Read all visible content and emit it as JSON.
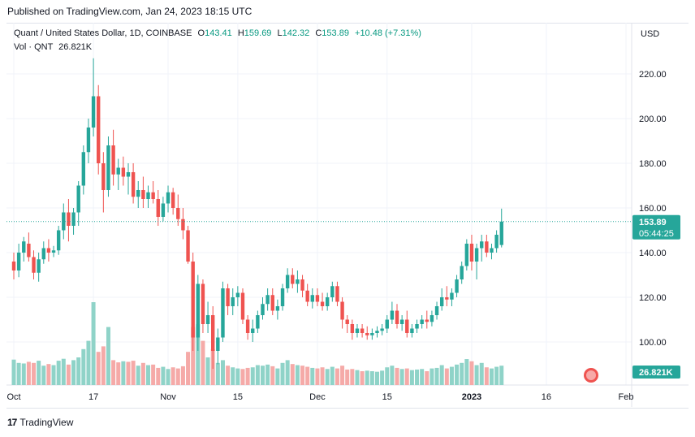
{
  "header": {
    "published": "Published on TradingView.com, Jan 24, 2023 18:15 UTC"
  },
  "legend": {
    "symbol": "Quant / United States Dollar, 1D, COINBASE",
    "o_label": "O",
    "o": "143.41",
    "h_label": "H",
    "h": "159.69",
    "l_label": "L",
    "l": "142.32",
    "c_label": "C",
    "c": "153.89",
    "change": "+10.48 (+7.31%)",
    "vol_label": "Vol · QNT",
    "vol": "26.821K"
  },
  "price_axis": {
    "currency": "USD",
    "ticks": [
      "220.00",
      "200.00",
      "180.00",
      "160.00",
      "140.00",
      "120.00",
      "100.00"
    ],
    "last_price": "153.89",
    "countdown": "05:44:25",
    "volume_badge": "26.821K"
  },
  "time_axis": {
    "labels": [
      "Oct",
      "17",
      "Nov",
      "15",
      "Dec",
      "15",
      "2023",
      "16",
      "Feb"
    ]
  },
  "footer": {
    "brand": "TradingView",
    "logo": "17"
  },
  "colors": {
    "up": "#26a69a",
    "down": "#ef5350",
    "up_vol": "#8fd3c8",
    "down_vol": "#f5aaa8",
    "badge": "#26a69a"
  },
  "chart_data": {
    "type": "candlestick",
    "title": "Quant / United States Dollar, 1D, COINBASE",
    "ylabel": "USD",
    "ylim": [
      86,
      230
    ],
    "x_tick_labels": [
      "Oct",
      "17",
      "Nov",
      "15",
      "Dec",
      "15",
      "2023",
      "16",
      "Feb"
    ],
    "x_tick_days": [
      0,
      16,
      31,
      45,
      61,
      75,
      92,
      107,
      123
    ],
    "start_label": "Oct",
    "candles": [
      [
        0,
        136,
        140,
        128,
        132
      ],
      [
        1,
        132,
        144,
        129,
        140
      ],
      [
        2,
        140,
        147,
        136,
        145
      ],
      [
        3,
        144,
        149,
        136,
        138
      ],
      [
        4,
        138,
        141,
        128,
        131
      ],
      [
        5,
        131,
        140,
        127,
        137
      ],
      [
        6,
        137,
        145,
        135,
        142
      ],
      [
        7,
        142,
        146,
        136,
        140
      ],
      [
        8,
        140,
        143,
        138,
        141
      ],
      [
        9,
        141,
        152,
        139,
        150
      ],
      [
        10,
        150,
        162,
        146,
        158
      ],
      [
        11,
        158,
        164,
        145,
        152
      ],
      [
        12,
        152,
        160,
        148,
        158
      ],
      [
        13,
        158,
        172,
        152,
        170
      ],
      [
        14,
        170,
        188,
        166,
        185
      ],
      [
        15,
        185,
        200,
        180,
        196
      ],
      [
        16,
        196,
        227,
        192,
        210
      ],
      [
        17,
        210,
        215,
        175,
        180
      ],
      [
        18,
        180,
        185,
        158,
        168
      ],
      [
        19,
        168,
        192,
        165,
        188
      ],
      [
        20,
        188,
        195,
        170,
        175
      ],
      [
        21,
        175,
        182,
        168,
        178
      ],
      [
        22,
        178,
        183,
        170,
        174
      ],
      [
        23,
        174,
        180,
        166,
        176
      ],
      [
        24,
        176,
        180,
        162,
        165
      ],
      [
        25,
        165,
        172,
        160,
        168
      ],
      [
        26,
        168,
        174,
        160,
        164
      ],
      [
        27,
        164,
        170,
        160,
        167
      ],
      [
        28,
        167,
        172,
        162,
        164
      ],
      [
        29,
        164,
        168,
        152,
        156
      ],
      [
        30,
        156,
        165,
        154,
        162
      ],
      [
        31,
        162,
        170,
        158,
        167
      ],
      [
        32,
        167,
        169,
        157,
        160
      ],
      [
        33,
        160,
        166,
        152,
        155
      ],
      [
        34,
        155,
        160,
        146,
        150
      ],
      [
        35,
        150,
        152,
        135,
        136
      ],
      [
        36,
        136,
        140,
        96,
        102
      ],
      [
        37,
        102,
        130,
        96,
        126
      ],
      [
        38,
        126,
        128,
        104,
        108
      ],
      [
        39,
        108,
        118,
        104,
        112
      ],
      [
        40,
        112,
        116,
        88,
        96
      ],
      [
        41,
        96,
        106,
        90,
        102
      ],
      [
        42,
        102,
        127,
        100,
        124
      ],
      [
        43,
        124,
        126,
        112,
        116
      ],
      [
        44,
        116,
        124,
        112,
        120
      ],
      [
        45,
        120,
        125,
        116,
        122
      ],
      [
        46,
        122,
        124,
        108,
        110
      ],
      [
        47,
        110,
        112,
        101,
        104
      ],
      [
        48,
        104,
        110,
        100,
        106
      ],
      [
        49,
        106,
        114,
        104,
        112
      ],
      [
        50,
        112,
        120,
        110,
        117
      ],
      [
        51,
        117,
        124,
        114,
        121
      ],
      [
        52,
        121,
        124,
        112,
        114
      ],
      [
        53,
        114,
        119,
        110,
        116
      ],
      [
        54,
        116,
        126,
        114,
        124
      ],
      [
        55,
        124,
        133,
        122,
        130
      ],
      [
        56,
        130,
        133,
        124,
        126
      ],
      [
        57,
        126,
        132,
        122,
        128
      ],
      [
        58,
        128,
        130,
        120,
        123
      ],
      [
        59,
        123,
        126,
        116,
        118
      ],
      [
        60,
        118,
        124,
        115,
        121
      ],
      [
        61,
        121,
        124,
        116,
        118
      ],
      [
        62,
        118,
        122,
        114,
        116
      ],
      [
        63,
        116,
        122,
        114,
        120
      ],
      [
        64,
        120,
        127,
        118,
        125
      ],
      [
        65,
        125,
        127,
        116,
        118
      ],
      [
        66,
        118,
        120,
        106,
        110
      ],
      [
        67,
        110,
        112,
        104,
        108
      ],
      [
        68,
        108,
        110,
        101,
        104
      ],
      [
        69,
        104,
        108,
        102,
        106
      ],
      [
        70,
        106,
        108,
        102,
        104
      ],
      [
        71,
        104,
        107,
        101,
        103
      ],
      [
        72,
        103,
        106,
        101,
        104
      ],
      [
        73,
        104,
        107,
        102,
        105
      ],
      [
        74,
        105,
        108,
        103,
        106
      ],
      [
        75,
        106,
        112,
        104,
        110
      ],
      [
        76,
        110,
        118,
        108,
        114
      ],
      [
        77,
        114,
        117,
        106,
        108
      ],
      [
        78,
        108,
        112,
        105,
        110
      ],
      [
        79,
        110,
        114,
        102,
        104
      ],
      [
        80,
        104,
        108,
        102,
        106
      ],
      [
        81,
        106,
        110,
        104,
        108
      ],
      [
        82,
        108,
        112,
        106,
        110
      ],
      [
        83,
        110,
        114,
        106,
        109
      ],
      [
        84,
        109,
        114,
        107,
        112
      ],
      [
        85,
        112,
        118,
        110,
        116
      ],
      [
        86,
        116,
        124,
        114,
        120
      ],
      [
        87,
        120,
        125,
        116,
        119
      ],
      [
        88,
        119,
        124,
        116,
        122
      ],
      [
        89,
        122,
        130,
        120,
        128
      ],
      [
        90,
        128,
        136,
        126,
        134
      ],
      [
        91,
        134,
        146,
        132,
        144
      ],
      [
        92,
        144,
        148,
        132,
        136
      ],
      [
        93,
        136,
        144,
        128,
        142
      ],
      [
        94,
        142,
        148,
        136,
        145
      ],
      [
        95,
        145,
        148,
        138,
        140
      ],
      [
        96,
        140,
        144,
        137,
        142
      ],
      [
        97,
        142,
        150,
        140,
        148
      ],
      [
        98,
        143.41,
        159.69,
        142.32,
        153.89
      ]
    ],
    "volume": [
      [
        0,
        92,
        "up"
      ],
      [
        1,
        80,
        "up"
      ],
      [
        2,
        78,
        "up"
      ],
      [
        3,
        84,
        "down"
      ],
      [
        4,
        80,
        "down"
      ],
      [
        5,
        88,
        "up"
      ],
      [
        6,
        70,
        "up"
      ],
      [
        7,
        76,
        "down"
      ],
      [
        8,
        72,
        "up"
      ],
      [
        9,
        88,
        "up"
      ],
      [
        10,
        95,
        "up"
      ],
      [
        11,
        74,
        "down"
      ],
      [
        12,
        90,
        "up"
      ],
      [
        13,
        100,
        "up"
      ],
      [
        14,
        130,
        "up"
      ],
      [
        15,
        160,
        "up"
      ],
      [
        16,
        300,
        "up"
      ],
      [
        17,
        120,
        "down"
      ],
      [
        18,
        140,
        "down"
      ],
      [
        19,
        210,
        "up"
      ],
      [
        20,
        90,
        "down"
      ],
      [
        21,
        82,
        "down"
      ],
      [
        22,
        86,
        "up"
      ],
      [
        23,
        84,
        "down"
      ],
      [
        24,
        88,
        "down"
      ],
      [
        25,
        70,
        "up"
      ],
      [
        26,
        80,
        "down"
      ],
      [
        27,
        72,
        "up"
      ],
      [
        28,
        74,
        "down"
      ],
      [
        29,
        62,
        "down"
      ],
      [
        30,
        66,
        "up"
      ],
      [
        31,
        58,
        "up"
      ],
      [
        32,
        64,
        "down"
      ],
      [
        33,
        60,
        "down"
      ],
      [
        34,
        68,
        "down"
      ],
      [
        35,
        120,
        "down"
      ],
      [
        36,
        210,
        "down"
      ],
      [
        37,
        220,
        "up"
      ],
      [
        38,
        160,
        "down"
      ],
      [
        39,
        100,
        "up"
      ],
      [
        40,
        130,
        "down"
      ],
      [
        41,
        80,
        "up"
      ],
      [
        42,
        90,
        "up"
      ],
      [
        43,
        70,
        "down"
      ],
      [
        44,
        64,
        "up"
      ],
      [
        45,
        60,
        "up"
      ],
      [
        46,
        58,
        "down"
      ],
      [
        47,
        62,
        "down"
      ],
      [
        48,
        64,
        "up"
      ],
      [
        49,
        72,
        "up"
      ],
      [
        50,
        70,
        "up"
      ],
      [
        51,
        74,
        "up"
      ],
      [
        52,
        68,
        "down"
      ],
      [
        53,
        60,
        "up"
      ],
      [
        54,
        80,
        "up"
      ],
      [
        55,
        90,
        "up"
      ],
      [
        56,
        76,
        "down"
      ],
      [
        57,
        72,
        "up"
      ],
      [
        58,
        70,
        "down"
      ],
      [
        59,
        66,
        "down"
      ],
      [
        60,
        62,
        "up"
      ],
      [
        61,
        60,
        "down"
      ],
      [
        62,
        64,
        "down"
      ],
      [
        63,
        58,
        "up"
      ],
      [
        64,
        66,
        "up"
      ],
      [
        65,
        60,
        "down"
      ],
      [
        66,
        70,
        "down"
      ],
      [
        67,
        56,
        "down"
      ],
      [
        68,
        58,
        "down"
      ],
      [
        69,
        54,
        "up"
      ],
      [
        70,
        50,
        "down"
      ],
      [
        71,
        52,
        "up"
      ],
      [
        72,
        50,
        "up"
      ],
      [
        73,
        48,
        "up"
      ],
      [
        74,
        52,
        "up"
      ],
      [
        75,
        64,
        "up"
      ],
      [
        76,
        70,
        "up"
      ],
      [
        77,
        62,
        "down"
      ],
      [
        78,
        58,
        "up"
      ],
      [
        79,
        60,
        "down"
      ],
      [
        80,
        54,
        "up"
      ],
      [
        81,
        56,
        "up"
      ],
      [
        82,
        58,
        "up"
      ],
      [
        83,
        50,
        "down"
      ],
      [
        84,
        60,
        "up"
      ],
      [
        85,
        62,
        "up"
      ],
      [
        86,
        72,
        "up"
      ],
      [
        87,
        60,
        "down"
      ],
      [
        88,
        66,
        "up"
      ],
      [
        89,
        74,
        "up"
      ],
      [
        90,
        80,
        "up"
      ],
      [
        91,
        94,
        "up"
      ],
      [
        92,
        86,
        "down"
      ],
      [
        93,
        72,
        "up"
      ],
      [
        94,
        80,
        "up"
      ],
      [
        95,
        64,
        "down"
      ],
      [
        96,
        60,
        "up"
      ],
      [
        97,
        66,
        "up"
      ],
      [
        98,
        70,
        "up"
      ]
    ]
  }
}
